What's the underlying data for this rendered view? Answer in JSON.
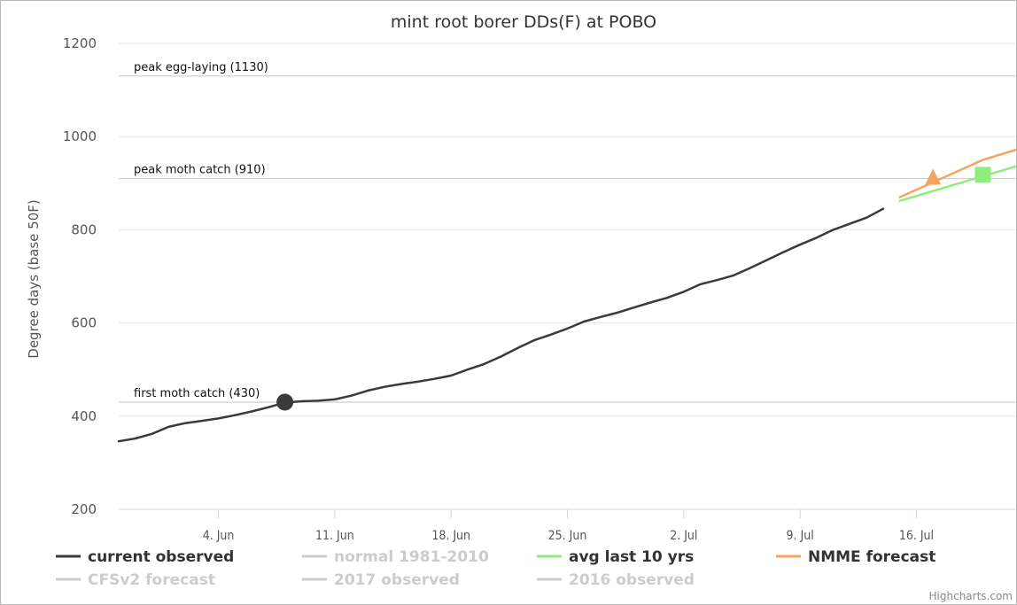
{
  "chart_data": {
    "type": "line",
    "title": "mint root borer DDs(F) at POBO",
    "ylabel": "Degree days (base 50F)",
    "ylim": [
      200,
      1200
    ],
    "yticks": [
      200,
      400,
      600,
      800,
      1000,
      1200
    ],
    "xlim": [
      "2018-05-29",
      "2018-07-22"
    ],
    "xticks": [
      {
        "date": "2018-06-04",
        "label": "4. Jun"
      },
      {
        "date": "2018-06-11",
        "label": "11. Jun"
      },
      {
        "date": "2018-06-18",
        "label": "18. Jun"
      },
      {
        "date": "2018-06-25",
        "label": "25. Jun"
      },
      {
        "date": "2018-07-02",
        "label": "2. Jul"
      },
      {
        "date": "2018-07-09",
        "label": "9. Jul"
      },
      {
        "date": "2018-07-16",
        "label": "16. Jul"
      }
    ],
    "plot_lines": [
      {
        "label": "peak egg-laying (1130)",
        "value": 1130
      },
      {
        "label": "peak moth catch (910)",
        "value": 910
      },
      {
        "label": "first moth catch (430)",
        "value": 430
      }
    ],
    "series": [
      {
        "name": "current observed",
        "color": "#3a3a3a",
        "visible": true,
        "points": [
          [
            "2018-05-29",
            346
          ],
          [
            "2018-05-30",
            352
          ],
          [
            "2018-05-31",
            362
          ],
          [
            "2018-06-01",
            377
          ],
          [
            "2018-06-02",
            385
          ],
          [
            "2018-06-03",
            390
          ],
          [
            "2018-06-04",
            395
          ],
          [
            "2018-06-05",
            402
          ],
          [
            "2018-06-06",
            410
          ],
          [
            "2018-06-07",
            419
          ],
          [
            "2018-06-08",
            429
          ],
          [
            "2018-06-09",
            432
          ],
          [
            "2018-06-10",
            433
          ],
          [
            "2018-06-11",
            436
          ],
          [
            "2018-06-12",
            444
          ],
          [
            "2018-06-13",
            455
          ],
          [
            "2018-06-14",
            463
          ],
          [
            "2018-06-15",
            469
          ],
          [
            "2018-06-16",
            474
          ],
          [
            "2018-06-17",
            480
          ],
          [
            "2018-06-18",
            487
          ],
          [
            "2018-06-19",
            500
          ],
          [
            "2018-06-20",
            512
          ],
          [
            "2018-06-21",
            528
          ],
          [
            "2018-06-22",
            546
          ],
          [
            "2018-06-23",
            563
          ],
          [
            "2018-06-24",
            575
          ],
          [
            "2018-06-25",
            588
          ],
          [
            "2018-06-26",
            603
          ],
          [
            "2018-06-27",
            613
          ],
          [
            "2018-06-28",
            622
          ],
          [
            "2018-06-29",
            633
          ],
          [
            "2018-06-30",
            644
          ],
          [
            "2018-07-01",
            654
          ],
          [
            "2018-07-02",
            667
          ],
          [
            "2018-07-03",
            683
          ],
          [
            "2018-07-04",
            692
          ],
          [
            "2018-07-05",
            702
          ],
          [
            "2018-07-06",
            718
          ],
          [
            "2018-07-07",
            735
          ],
          [
            "2018-07-08",
            752
          ],
          [
            "2018-07-09",
            768
          ],
          [
            "2018-07-10",
            783
          ],
          [
            "2018-07-11",
            800
          ],
          [
            "2018-07-12",
            813
          ],
          [
            "2018-07-13",
            826
          ],
          [
            "2018-07-14",
            845
          ]
        ]
      },
      {
        "name": "normal 1981-2010",
        "color": "#cccccc",
        "visible": false,
        "points": []
      },
      {
        "name": "avg last 10 yrs",
        "color": "#90ed7d",
        "visible": true,
        "points": [
          [
            "2018-07-15",
            862
          ],
          [
            "2018-07-20",
            915
          ],
          [
            "2018-07-29",
            1010
          ]
        ],
        "marker": {
          "symbol": "square",
          "date": "2018-07-20",
          "value": 918
        }
      },
      {
        "name": "NMME forecast",
        "color": "#f7a35c",
        "visible": true,
        "points": [
          [
            "2018-07-15",
            870
          ],
          [
            "2018-07-20",
            950
          ],
          [
            "2018-07-29",
            1048
          ]
        ],
        "marker": {
          "symbol": "triangle",
          "date": "2018-07-17",
          "value": 912
        }
      },
      {
        "name": "CFSv2 forecast",
        "color": "#cccccc",
        "visible": false,
        "points": []
      },
      {
        "name": "2017 observed",
        "color": "#cccccc",
        "visible": false,
        "points": []
      },
      {
        "name": "2016 observed",
        "color": "#cccccc",
        "visible": false,
        "points": []
      }
    ],
    "annotation_marker": {
      "date": "2018-06-08",
      "value": 430,
      "color": "#3a3a3a"
    },
    "grid": "horizontal",
    "legend_position": "bottom"
  },
  "legend": [
    {
      "label": "current observed",
      "color": "#3a3a3a",
      "text_color": "#333333"
    },
    {
      "label": "normal 1981-2010",
      "color": "#cccccc",
      "text_color": "#cccccc"
    },
    {
      "label": "avg last 10 yrs",
      "color": "#90ed7d",
      "text_color": "#333333"
    },
    {
      "label": "NMME forecast",
      "color": "#f7a35c",
      "text_color": "#333333"
    },
    {
      "label": "CFSv2 forecast",
      "color": "#cccccc",
      "text_color": "#cccccc"
    },
    {
      "label": "2017 observed",
      "color": "#cccccc",
      "text_color": "#cccccc"
    },
    {
      "label": "2016 observed",
      "color": "#cccccc",
      "text_color": "#cccccc"
    }
  ],
  "credit": "Highcharts.com"
}
